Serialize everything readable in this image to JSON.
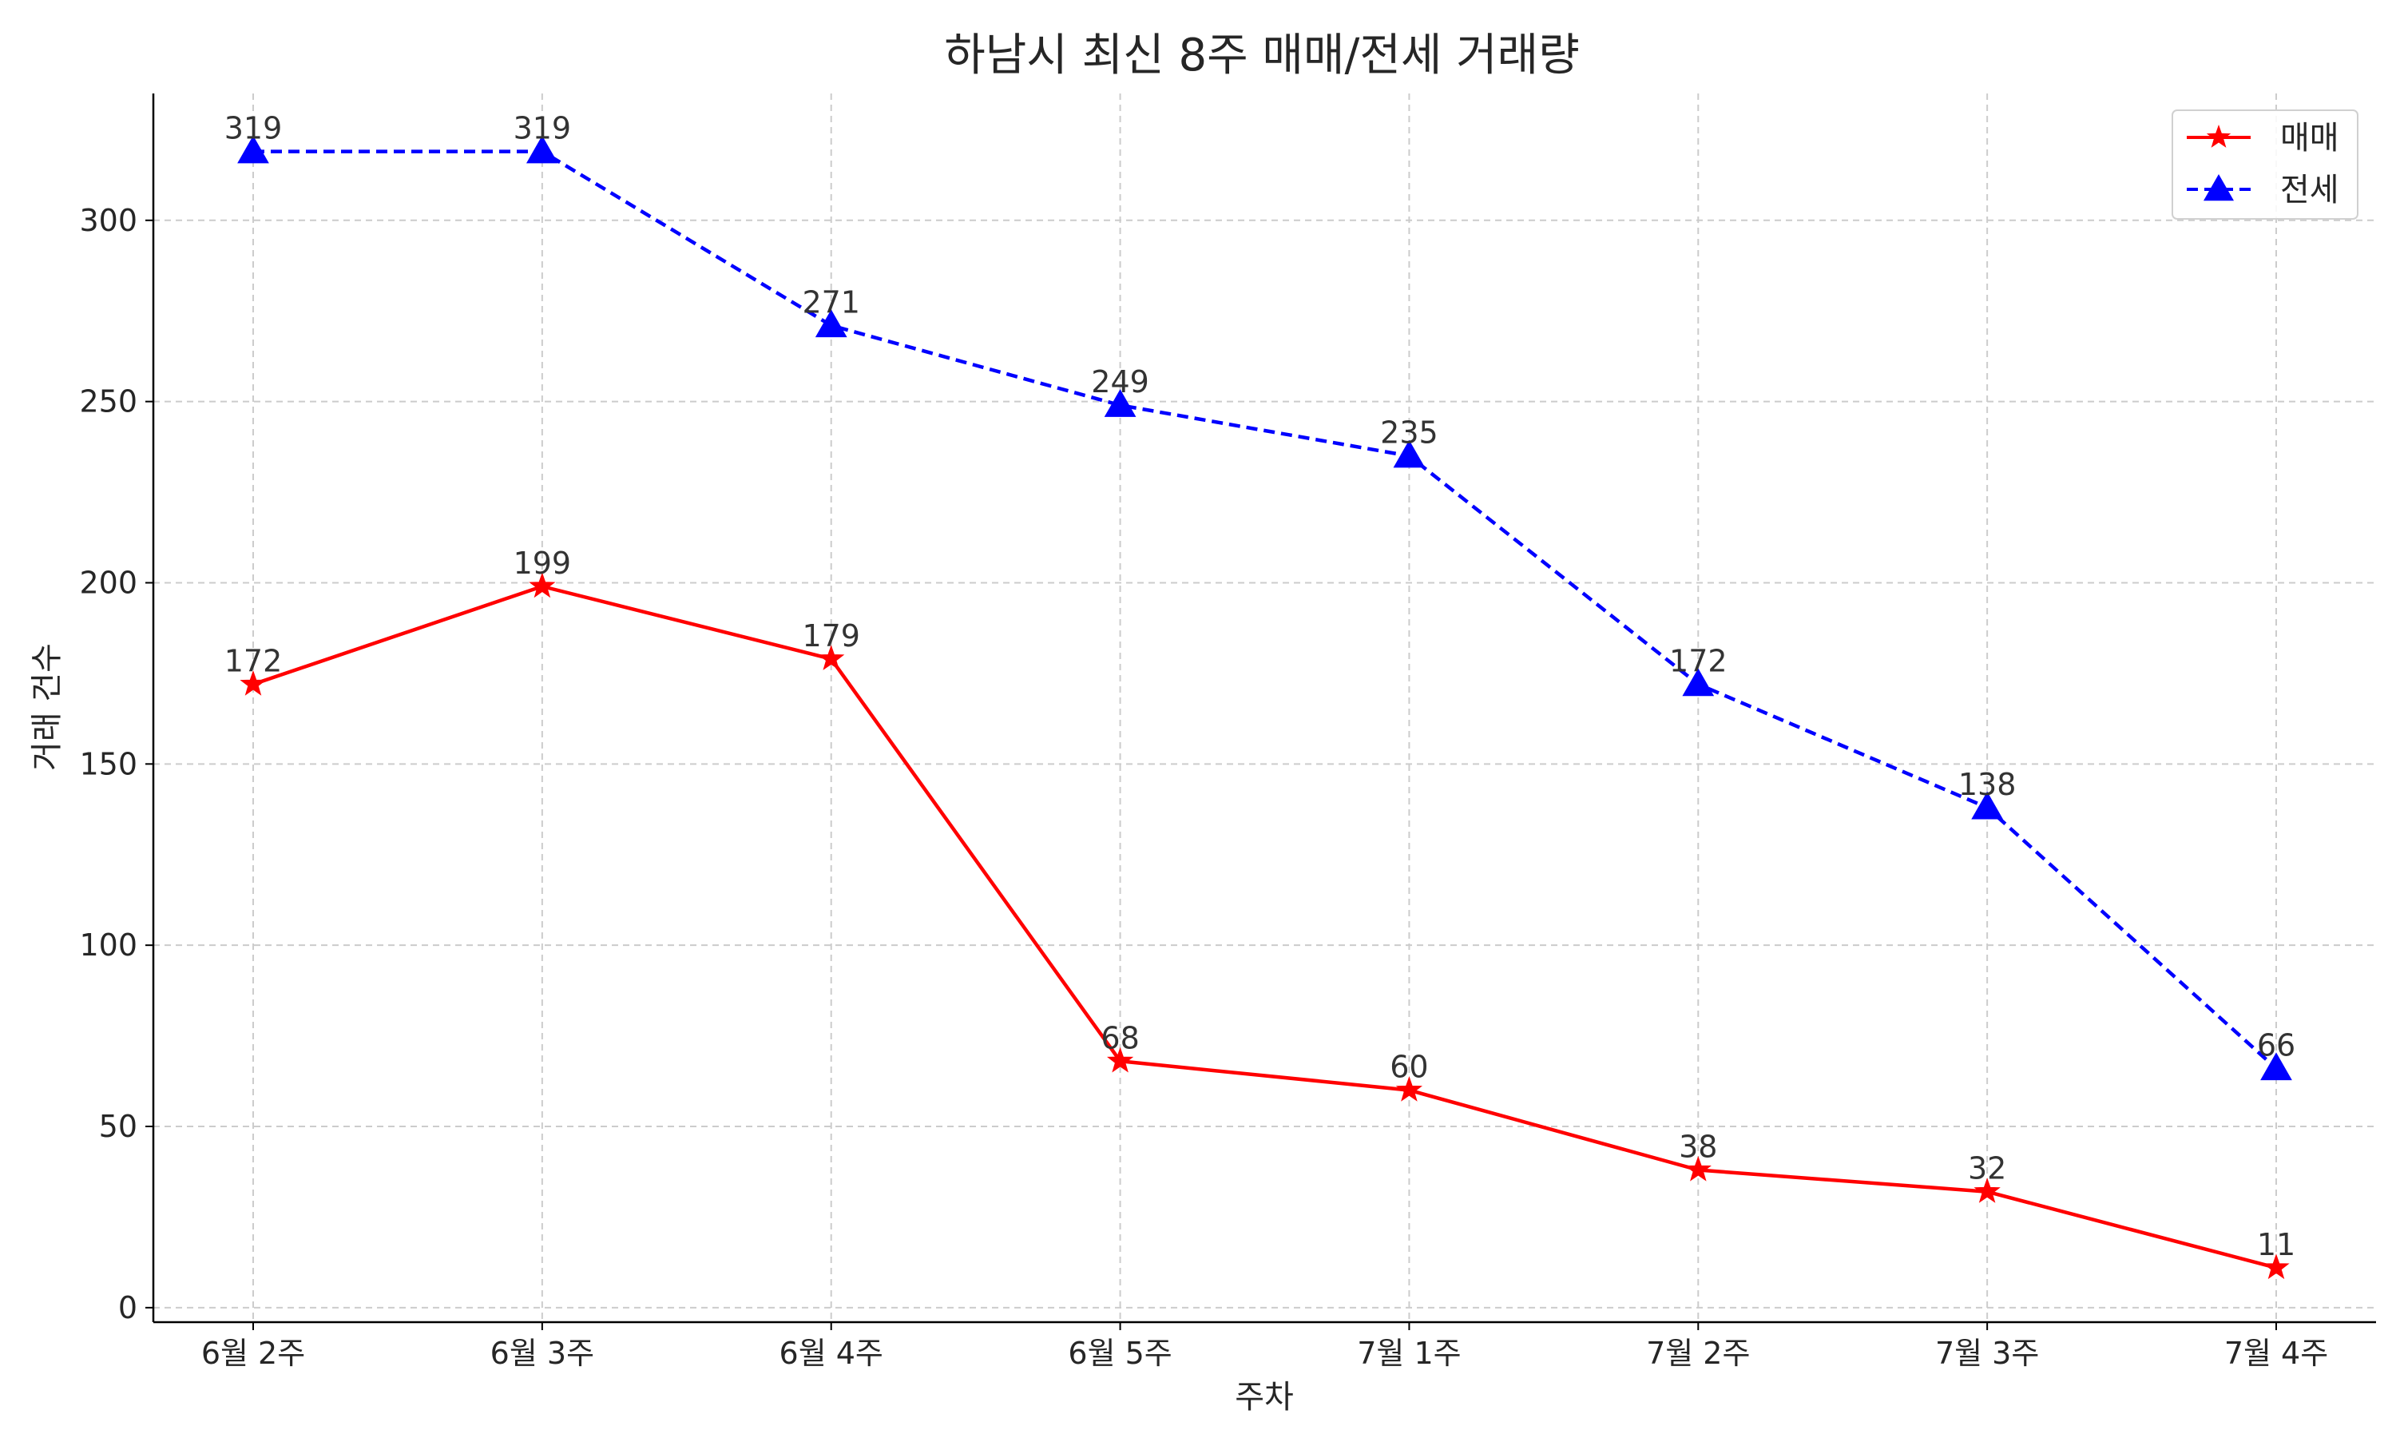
{
  "chart_data": {
    "type": "line",
    "title": "하남시 최신 8주 매매/전세 거래량",
    "xlabel": "주차",
    "ylabel": "거래 건수",
    "categories": [
      "6월 2주",
      "6월 3주",
      "6월 4주",
      "6월 5주",
      "7월 1주",
      "7월 2주",
      "7월 3주",
      "7월 4주"
    ],
    "ylim": [
      -4,
      335
    ],
    "yticks": [
      0,
      50,
      100,
      150,
      200,
      250,
      300
    ],
    "grid": true,
    "legend_position": "top-right",
    "series": [
      {
        "name": "매매",
        "values": [
          172,
          199,
          179,
          68,
          60,
          38,
          32,
          11
        ],
        "color": "#ff0000",
        "line_style": "solid",
        "marker": "star"
      },
      {
        "name": "전세",
        "values": [
          319,
          319,
          271,
          249,
          235,
          172,
          138,
          66
        ],
        "color": "#0000ff",
        "line_style": "dashed",
        "marker": "triangle"
      }
    ]
  }
}
